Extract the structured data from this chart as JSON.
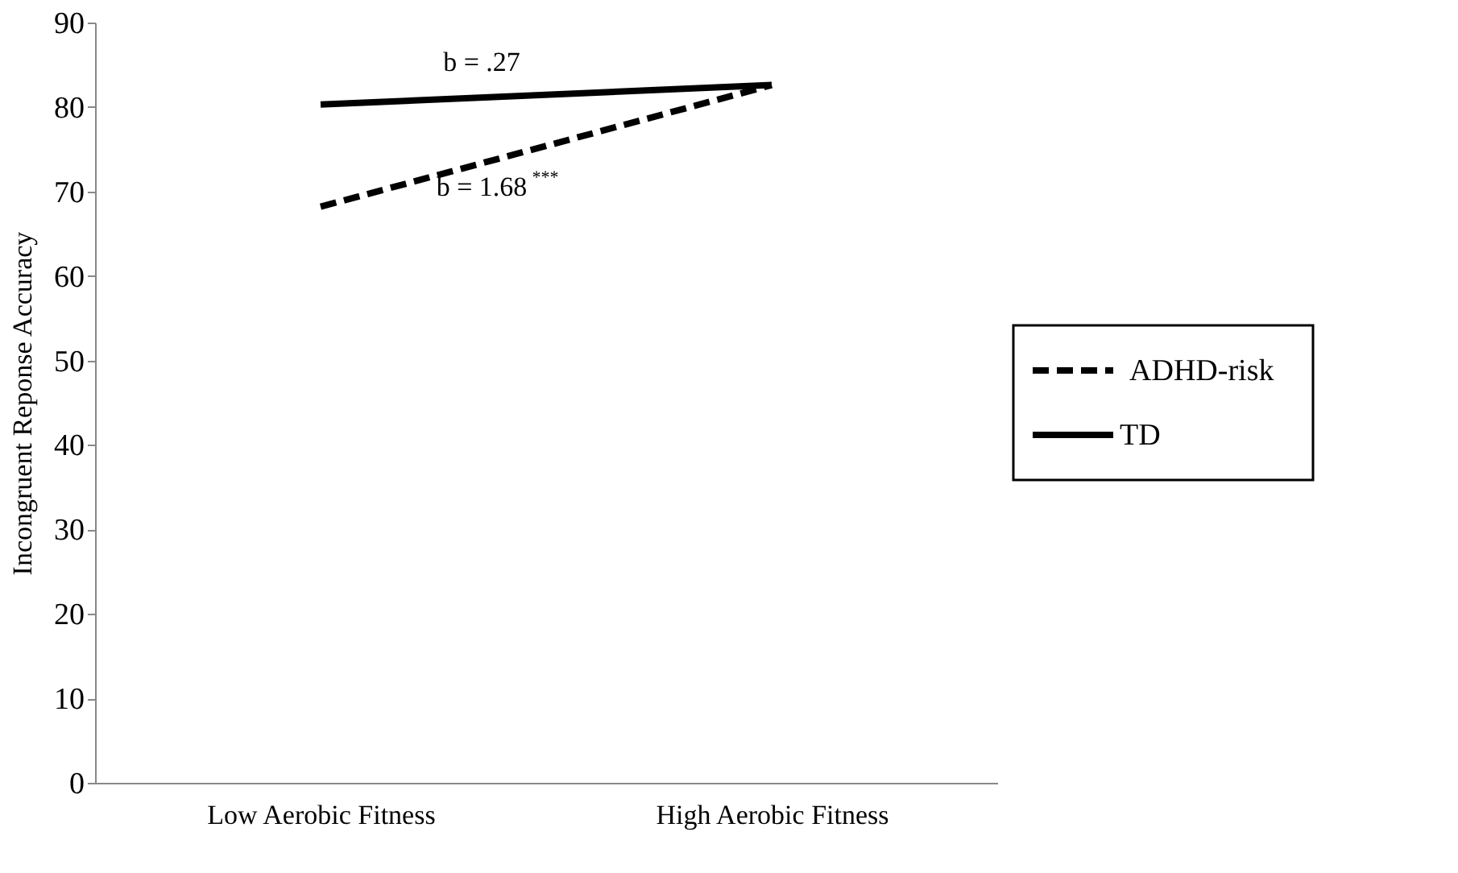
{
  "chart_data": {
    "type": "line",
    "ylabel": "Incongruent Reponse Accuracy",
    "categories": [
      "Low Aerobic Fitness",
      "High Aerobic Fitness"
    ],
    "series": [
      {
        "name": "ADHD-risk",
        "color": "#000000",
        "line_style": "dashed",
        "values": [
          68.2,
          82.6
        ]
      },
      {
        "name": "TD",
        "color": "#000000",
        "line_style": "solid",
        "values": [
          80.3,
          82.6
        ]
      }
    ],
    "ylim": [
      0,
      90
    ],
    "yticks": [
      0,
      10,
      20,
      30,
      40,
      50,
      60,
      70,
      80,
      90
    ],
    "grid": false,
    "legend": "right",
    "marker": "none",
    "annotations": [
      "b = .27",
      "b = 1.68$^{***}$"
    ]
  }
}
